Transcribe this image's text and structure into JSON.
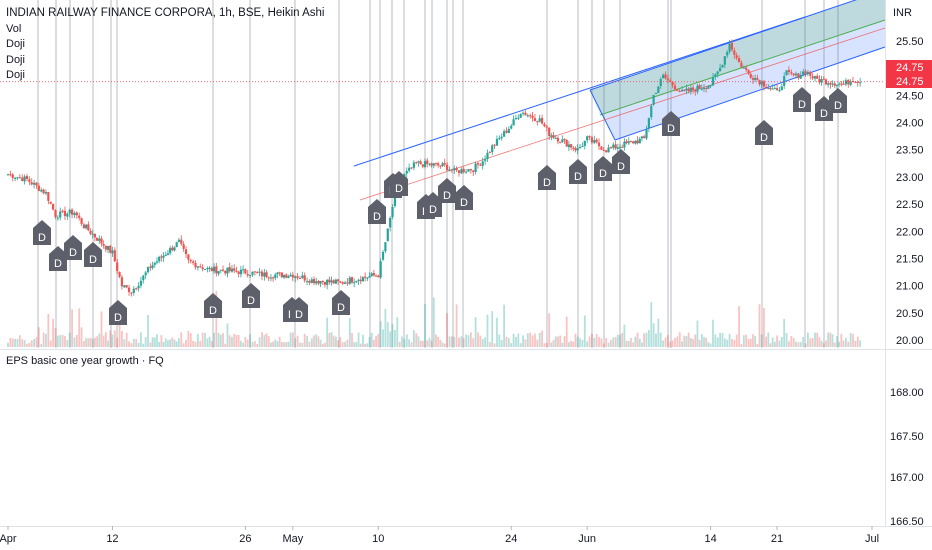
{
  "header": {
    "title": "INDIAN RAILWAY FINANCE CORPORA, 1h, BSE, Heikin Ashi",
    "indicators": [
      "Vol",
      "Doji",
      "Doji",
      "Doji"
    ]
  },
  "subpane": {
    "title": "EPS basic one year growth · FQ"
  },
  "colors": {
    "up": "#26a69a",
    "down": "#ef5350",
    "vlines": "#b2b5be",
    "badge": "#5d606b",
    "channel_blue": "#2962ff",
    "channel_green": "#4caf50",
    "price_tag": "#f23645"
  },
  "chart_data": [
    {
      "type": "candlestick",
      "title": "INDIAN RAILWAY FINANCE CORPORA, 1h, BSE, Heikin Ashi",
      "currency": "INR",
      "x_tick_labels": [
        "Apr",
        "12",
        "26",
        "May",
        "10",
        "24",
        "Jun",
        "14",
        "21",
        "Jul"
      ],
      "y_tick_labels": [
        "25.50",
        "25.00",
        "24.50",
        "24.00",
        "23.50",
        "23.00",
        "22.50",
        "22.00",
        "21.50",
        "21.00",
        "20.50",
        "20.00"
      ],
      "ylim": [
        19.9,
        26.1
      ],
      "last_price": "24.75",
      "price_labels": [
        "24.75",
        "24.75"
      ],
      "price_path": [
        [
          "Apr 1",
          23.05
        ],
        [
          "Apr 3",
          22.95
        ],
        [
          "Apr 5",
          22.7
        ],
        [
          "Apr 6",
          22.3
        ],
        [
          "Apr 8",
          22.35
        ],
        [
          "Apr 9",
          22.1
        ],
        [
          "Apr 12",
          21.6
        ],
        [
          "Apr 13",
          21.0
        ],
        [
          "Apr 14",
          20.9
        ],
        [
          "Apr 15",
          21.1
        ],
        [
          "Apr 16",
          21.35
        ],
        [
          "Apr 19",
          21.8
        ],
        [
          "Apr 20",
          21.45
        ],
        [
          "Apr 22",
          21.3
        ],
        [
          "Apr 26",
          21.25
        ],
        [
          "Apr 28",
          21.2
        ],
        [
          "May 1",
          21.2
        ],
        [
          "May 3",
          21.1
        ],
        [
          "May 6",
          21.05
        ],
        [
          "May 7",
          21.1
        ],
        [
          "May 10",
          21.2
        ],
        [
          "May 11",
          22.0
        ],
        [
          "May 12",
          22.9
        ],
        [
          "May 14",
          23.25
        ],
        [
          "May 17",
          23.2
        ],
        [
          "May 18",
          23.1
        ],
        [
          "May 20",
          23.15
        ],
        [
          "May 21",
          23.3
        ],
        [
          "May 22",
          23.55
        ],
        [
          "May 24",
          23.95
        ],
        [
          "May 25",
          24.2
        ],
        [
          "May 27",
          24.05
        ],
        [
          "May 28",
          23.8
        ],
        [
          "May 31",
          23.5
        ],
        [
          "Jun 1",
          23.7
        ],
        [
          "Jun 2",
          23.6
        ],
        [
          "Jun 3",
          23.5
        ],
        [
          "Jun 4",
          23.55
        ],
        [
          "Jun 7",
          23.7
        ],
        [
          "Jun 8",
          24.5
        ],
        [
          "Jun 9",
          24.85
        ],
        [
          "Jun 10",
          24.7
        ],
        [
          "Jun 11",
          24.55
        ],
        [
          "Jun 14",
          24.7
        ],
        [
          "Jun 15",
          25.0
        ],
        [
          "Jun 16",
          25.45
        ],
        [
          "Jun 17",
          25.1
        ],
        [
          "Jun 18",
          24.9
        ],
        [
          "Jun 21",
          24.55
        ],
        [
          "Jun 22",
          24.9
        ],
        [
          "Jun 23",
          24.85
        ],
        [
          "Jun 24",
          24.95
        ],
        [
          "Jun 25",
          24.8
        ],
        [
          "Jun 28",
          24.7
        ],
        [
          "Jun 29",
          24.8
        ],
        [
          "Jun 30",
          24.75
        ]
      ],
      "doji_markers": [
        "D",
        "D",
        "D",
        "D",
        "D",
        "D",
        "D",
        "D",
        "D",
        "D",
        "D",
        "D",
        "D",
        "D",
        "D",
        "D",
        "D",
        "D",
        "D",
        "D",
        "D",
        "D",
        "D",
        "D",
        "D",
        "D",
        "D",
        "D"
      ],
      "volume_series": "Vol"
    },
    {
      "type": "line",
      "title": "EPS basic one year growth · FQ",
      "y_tick_labels": [
        "168.00",
        "167.50",
        "167.00",
        "166.50"
      ],
      "series": []
    }
  ]
}
